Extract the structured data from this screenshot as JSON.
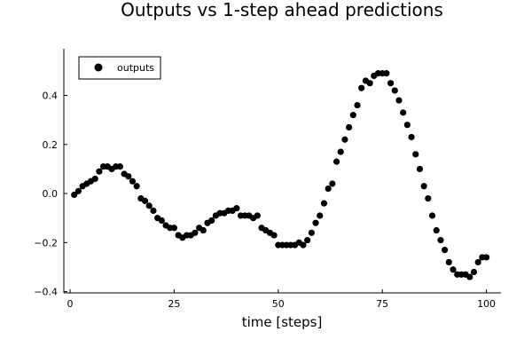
{
  "chart_data": {
    "type": "scatter",
    "title": "Outputs vs 1-step ahead predictions",
    "xlabel": "time [steps]",
    "ylabel": "",
    "xlim": [
      -1.5,
      103.5
    ],
    "ylim": [
      -0.405,
      0.59
    ],
    "xticks": [
      0,
      25,
      50,
      75,
      100
    ],
    "yticks": [
      -0.4,
      -0.2,
      0.0,
      0.2,
      0.4
    ],
    "ytick_labels": [
      "−0.4",
      "−0.2",
      "0.0",
      "0.2",
      "0.4"
    ],
    "grid": false,
    "legend_position": "top-left",
    "series": [
      {
        "name": "outputs",
        "color": "#000000",
        "x": [
          1,
          2,
          3,
          4,
          5,
          6,
          7,
          8,
          9,
          10,
          11,
          12,
          13,
          14,
          15,
          16,
          17,
          18,
          19,
          20,
          21,
          22,
          23,
          24,
          25,
          26,
          27,
          28,
          29,
          30,
          31,
          32,
          33,
          34,
          35,
          36,
          37,
          38,
          39,
          40,
          41,
          42,
          43,
          44,
          45,
          46,
          47,
          48,
          49,
          50,
          51,
          52,
          53,
          54,
          55,
          56,
          57,
          58,
          59,
          60,
          61,
          62,
          63,
          64,
          65,
          66,
          67,
          68,
          69,
          70,
          71,
          72,
          73,
          74,
          75,
          76,
          77,
          78,
          79,
          80,
          81,
          82,
          83,
          84,
          85,
          86,
          87,
          88,
          89,
          90,
          91,
          92,
          93,
          94,
          95,
          96,
          97,
          98,
          99,
          100
        ],
        "y": [
          -0.005,
          0.01,
          0.03,
          0.04,
          0.05,
          0.06,
          0.09,
          0.11,
          0.11,
          0.1,
          0.11,
          0.11,
          0.08,
          0.07,
          0.05,
          0.03,
          -0.02,
          -0.03,
          -0.05,
          -0.07,
          -0.1,
          -0.11,
          -0.13,
          -0.14,
          -0.14,
          -0.17,
          -0.18,
          -0.17,
          -0.17,
          -0.16,
          -0.14,
          -0.15,
          -0.12,
          -0.11,
          -0.09,
          -0.08,
          -0.08,
          -0.07,
          -0.07,
          -0.06,
          -0.09,
          -0.09,
          -0.09,
          -0.1,
          -0.09,
          -0.14,
          -0.15,
          -0.16,
          -0.17,
          -0.21,
          -0.21,
          -0.21,
          -0.21,
          -0.21,
          -0.2,
          -0.21,
          -0.19,
          -0.16,
          -0.12,
          -0.09,
          -0.04,
          0.02,
          0.04,
          0.13,
          0.17,
          0.22,
          0.27,
          0.32,
          0.36,
          0.43,
          0.46,
          0.45,
          0.48,
          0.49,
          0.49,
          0.49,
          0.45,
          0.42,
          0.38,
          0.33,
          0.28,
          0.23,
          0.16,
          0.1,
          0.03,
          -0.02,
          -0.09,
          -0.15,
          -0.19,
          -0.23,
          -0.28,
          -0.31,
          -0.33,
          -0.33,
          -0.33,
          -0.34,
          -0.32,
          -0.28,
          -0.26,
          -0.26
        ]
      }
    ]
  }
}
